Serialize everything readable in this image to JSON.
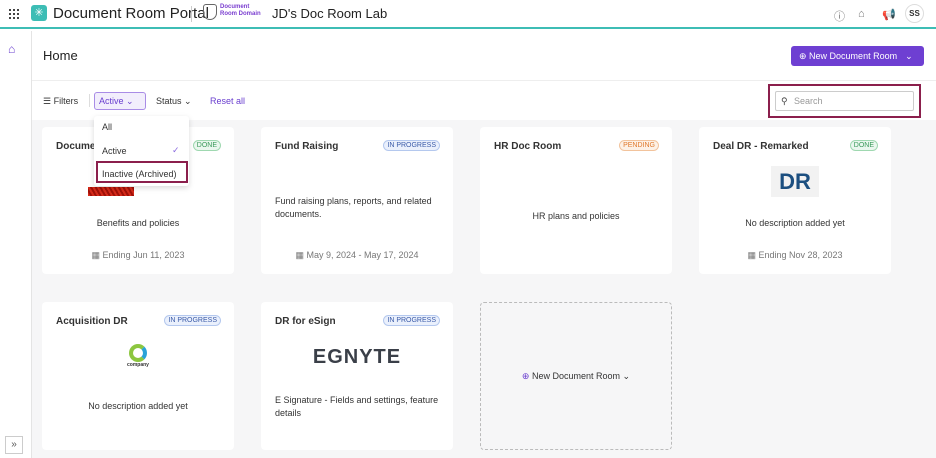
{
  "topbar": {
    "app_title": "Document Room Portal",
    "domain_label_1": "Document",
    "domain_label_2": "Room Domain",
    "workspace": "JD's Doc Room Lab",
    "avatar": "SS"
  },
  "header": {
    "title": "Home",
    "new_button": "New Document Room"
  },
  "filters": {
    "label": "Filters",
    "active": "Active",
    "status": "Status",
    "reset": "Reset all",
    "search_placeholder": "Search",
    "dropdown": [
      {
        "label": "All"
      },
      {
        "label": "Active",
        "selected": true
      },
      {
        "label": "Inactive (Archived)"
      }
    ]
  },
  "cards": [
    {
      "title": "Document",
      "badge": "DONE",
      "desc": "Benefits and policies",
      "date": "Ending Jun 11, 2023"
    },
    {
      "title": "Fund Raising",
      "badge": "IN PROGRESS",
      "desc": "Fund raising plans, reports, and related documents.",
      "date": "May 9, 2024 - May 17, 2024"
    },
    {
      "title": "HR Doc Room",
      "badge": "PENDING",
      "desc": "HR plans and policies"
    },
    {
      "title": "Deal DR - Remarked",
      "badge": "DONE",
      "desc": "No description added yet",
      "date": "Ending Nov 28, 2023",
      "logo": "DR"
    },
    {
      "title": "Acquisition DR",
      "badge": "IN PROGRESS",
      "desc": "No description added yet",
      "logo": "company"
    },
    {
      "title": "DR for eSign",
      "badge": "IN PROGRESS",
      "desc": "E Signature - Fields and settings, feature details",
      "logo": "EGNYTE"
    }
  ],
  "new_card": "New Document Room",
  "colors": {
    "accent": "#6e3fd2",
    "teal": "#3dbdb5",
    "highlight": "#8b1f4c"
  }
}
